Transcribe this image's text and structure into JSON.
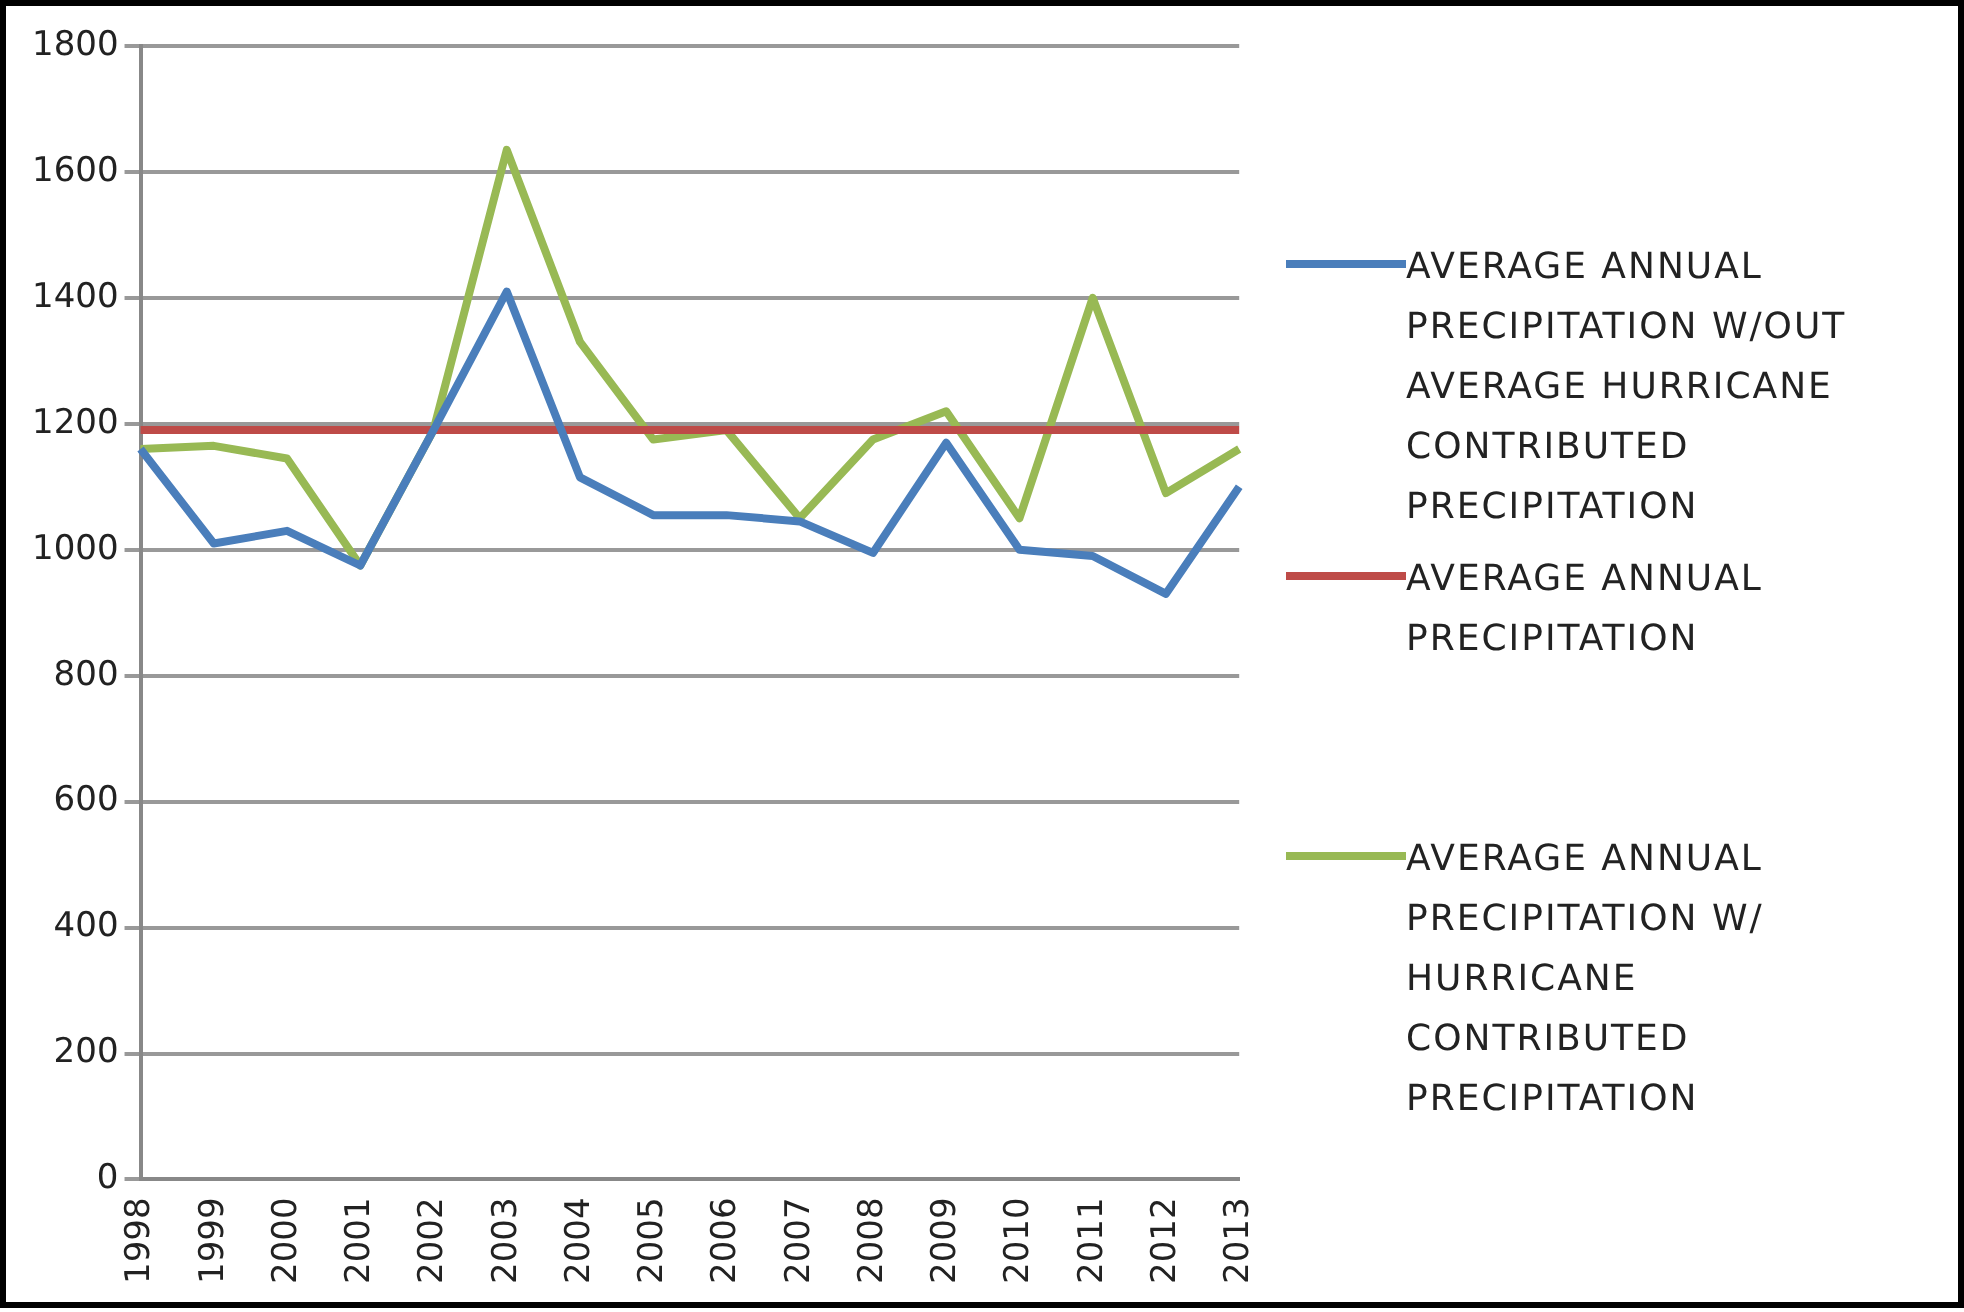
{
  "chart_data": {
    "type": "line",
    "categories": [
      "1998",
      "1999",
      "2000",
      "2001",
      "2002",
      "2003",
      "2004",
      "2005",
      "2006",
      "2007",
      "2008",
      "2009",
      "2010",
      "2011",
      "2012",
      "2013"
    ],
    "series": [
      {
        "name": "AVERAGE ANNUAL PRECIPITATION W/OUT AVERAGE HURRICANE CONTRIBUTED PRECIPITATION",
        "color": "#4a7ebb",
        "values": [
          1160,
          1010,
          1030,
          975,
          1190,
          1410,
          1115,
          1055,
          1055,
          1045,
          995,
          1170,
          1000,
          990,
          930,
          1100
        ]
      },
      {
        "name": "AVERAGE ANNUAL PRECIPITATION",
        "color": "#be4b48",
        "values": [
          1190,
          1190,
          1190,
          1190,
          1190,
          1190,
          1190,
          1190,
          1190,
          1190,
          1190,
          1190,
          1190,
          1190,
          1190,
          1190
        ]
      },
      {
        "name": "AVERAGE ANNUAL PRECIPITATION W/ HURRICANE CONTRIBUTED PRECIPITATION",
        "color": "#98b954",
        "values": [
          1160,
          1165,
          1145,
          975,
          1190,
          1635,
          1330,
          1175,
          1190,
          1050,
          1175,
          1220,
          1050,
          1400,
          1090,
          1160
        ]
      }
    ],
    "ylim": [
      0,
      1800
    ],
    "yticks": [
      0,
      200,
      400,
      600,
      800,
      1000,
      1200,
      1400,
      1600,
      1800
    ],
    "grid": "y",
    "legend": "right",
    "marker": "none",
    "line_style": "solid"
  }
}
